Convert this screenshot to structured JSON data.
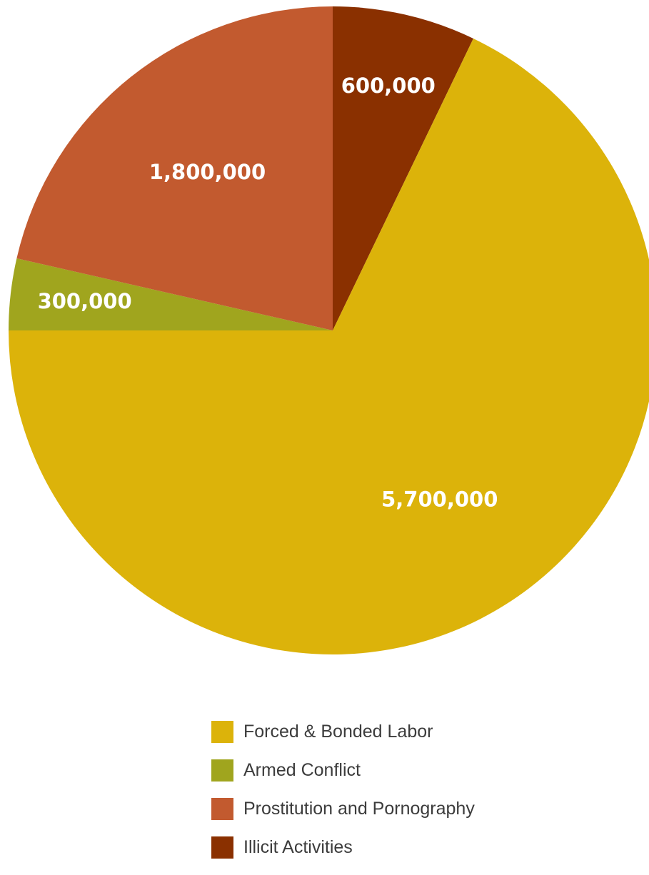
{
  "chart_data": {
    "type": "pie",
    "title": "",
    "start_angle": "12 o'clock, clockwise",
    "legend_position": "bottom",
    "slices": [
      {
        "label": "Illicit Activities",
        "value": 600000,
        "display": "600,000",
        "color": "#8a3000"
      },
      {
        "label": "Forced & Bonded Labor",
        "value": 5700000,
        "display": "5,700,000",
        "color": "#dcb30a"
      },
      {
        "label": "Armed Conflict",
        "value": 300000,
        "display": "300,000",
        "color": "#a0a51e"
      },
      {
        "label": "Prostitution and Pornography",
        "value": 1800000,
        "display": "1,800,000",
        "color": "#c25a2f"
      }
    ]
  },
  "legend": {
    "items": [
      {
        "label": "Forced & Bonded Labor",
        "color": "#dcb30a"
      },
      {
        "label": "Armed Conflict",
        "color": "#a0a51e"
      },
      {
        "label": "Prostitution and Pornography",
        "color": "#c25a2f"
      },
      {
        "label": "Illicit Activities",
        "color": "#8a3000"
      }
    ]
  }
}
